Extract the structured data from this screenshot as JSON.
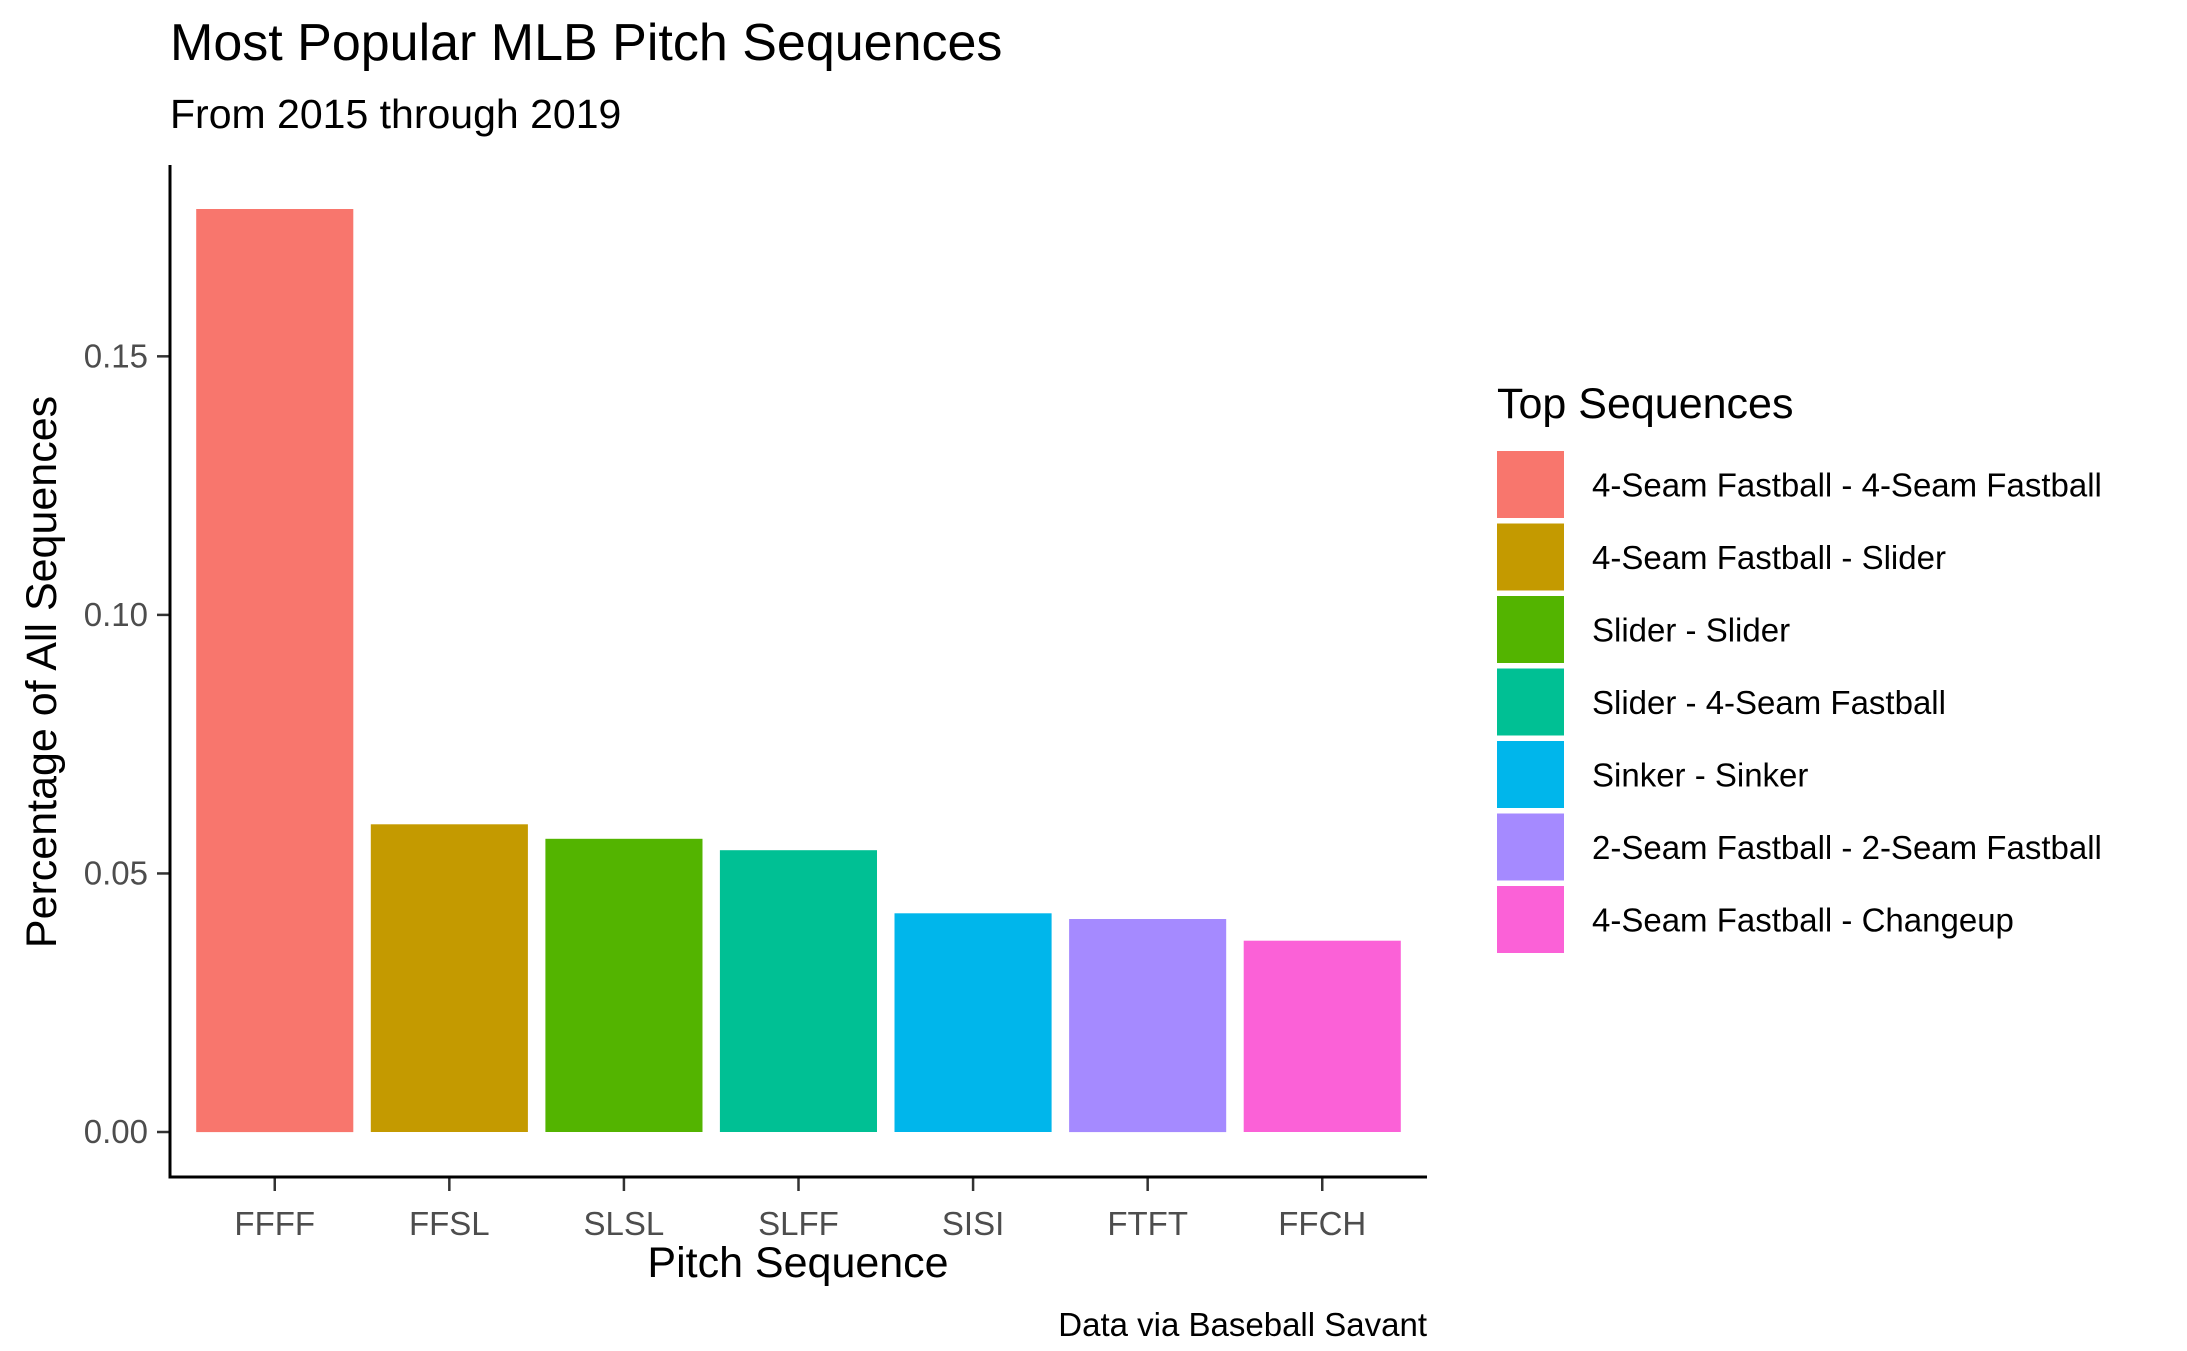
{
  "chart_data": {
    "type": "bar",
    "title": "Most Popular MLB Pitch Sequences",
    "subtitle": "From 2015 through 2019",
    "xlabel": "Pitch Sequence",
    "ylabel": "Percentage of All Sequences",
    "caption": "Data via Baseball Savant",
    "categories": [
      "FFFF",
      "FFSL",
      "SLSL",
      "SLFF",
      "SISI",
      "FTFT",
      "FFCH"
    ],
    "values": [
      0.1785,
      0.0595,
      0.0567,
      0.0545,
      0.0423,
      0.0412,
      0.037
    ],
    "colors": [
      "#F8766D",
      "#C49A00",
      "#53B400",
      "#00C094",
      "#00B6EB",
      "#A58AFF",
      "#FB61D7"
    ],
    "ylim": [
      -0.0087,
      0.187
    ],
    "y_ticks": [
      0.0,
      0.05,
      0.1,
      0.15
    ],
    "y_tick_labels": [
      "0.00",
      "0.05",
      "0.10",
      "0.15"
    ],
    "grid": false,
    "legend": {
      "title": "Top Sequences",
      "placement": "right",
      "entries": [
        "4-Seam Fastball - 4-Seam Fastball",
        "4-Seam Fastball - Slider",
        "Slider - Slider",
        "Slider - 4-Seam Fastball",
        "Sinker - Sinker",
        "2-Seam Fastball - 2-Seam Fastball",
        "4-Seam Fastball - Changeup"
      ]
    }
  }
}
